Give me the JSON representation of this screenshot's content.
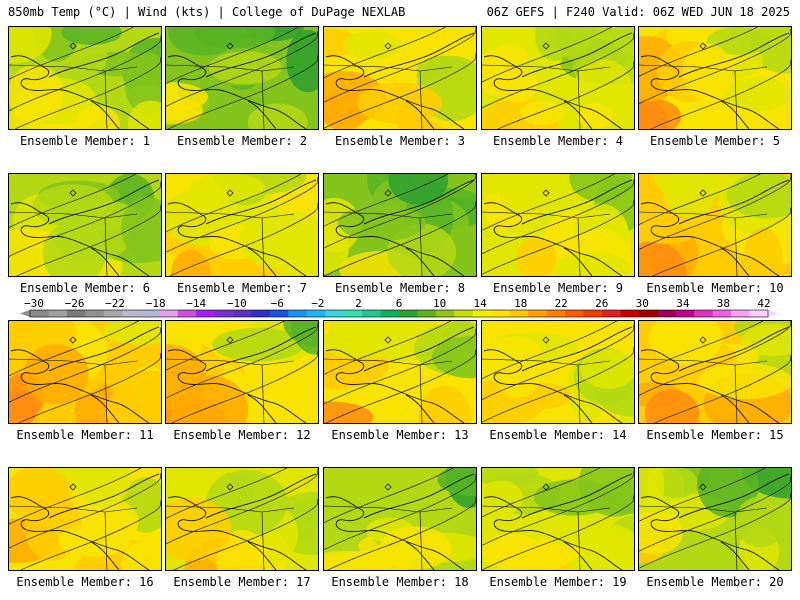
{
  "header": {
    "left": "850mb Temp (°C) | Wind (kts) | College of DuPage NEXLAB",
    "right": "06Z GEFS | F240 Valid: 06Z WED JUN 18 2025"
  },
  "colorbar": {
    "labels": [
      "−30",
      "−26",
      "−22",
      "−18",
      "−14",
      "−10",
      "−6",
      "−2",
      "2",
      "6",
      "10",
      "14",
      "18",
      "22",
      "26",
      "30",
      "34",
      "38",
      "42"
    ],
    "colors": [
      "#8c8c8c",
      "#a0a0a0",
      "#7b7b7b",
      "#8f8f8f",
      "#a8a8a8",
      "#b9b9c9",
      "#b6b6d8",
      "#e4a0e4",
      "#d04ce0",
      "#a020f0",
      "#7a30d0",
      "#5a30c0",
      "#3030c8",
      "#1e50e6",
      "#2090f0",
      "#20b4f0",
      "#40d0e0",
      "#30e0b0",
      "#20c890",
      "#10b060",
      "#30a030",
      "#60b020",
      "#90c818",
      "#c8e000",
      "#f0f000",
      "#ffe000",
      "#ffc800",
      "#ffa000",
      "#ff8000",
      "#ff5a00",
      "#f03c00",
      "#e02020",
      "#c80000",
      "#a00000",
      "#a00050",
      "#c00090",
      "#e030c0",
      "#f060e0",
      "#f8a0f0",
      "#ffd0ff"
    ]
  },
  "members": [
    {
      "label": "Ensemble Member: 1",
      "base": 0.42
    },
    {
      "label": "Ensemble Member: 2",
      "base": 0.3
    },
    {
      "label": "Ensemble Member: 3",
      "base": 0.58
    },
    {
      "label": "Ensemble Member: 4",
      "base": 0.52
    },
    {
      "label": "Ensemble Member: 5",
      "base": 0.66
    },
    {
      "label": "Ensemble Member: 6",
      "base": 0.4
    },
    {
      "label": "Ensemble Member: 7",
      "base": 0.58
    },
    {
      "label": "Ensemble Member: 8",
      "base": 0.28
    },
    {
      "label": "Ensemble Member: 9",
      "base": 0.55
    },
    {
      "label": "Ensemble Member: 10",
      "base": 0.68
    },
    {
      "label": "Ensemble Member: 11",
      "base": 0.72
    },
    {
      "label": "Ensemble Member: 12",
      "base": 0.62
    },
    {
      "label": "Ensemble Member: 13",
      "base": 0.58
    },
    {
      "label": "Ensemble Member: 14",
      "base": 0.56
    },
    {
      "label": "Ensemble Member: 15",
      "base": 0.68
    },
    {
      "label": "Ensemble Member: 16",
      "base": 0.64
    },
    {
      "label": "Ensemble Member: 17",
      "base": 0.55
    },
    {
      "label": "Ensemble Member: 18",
      "base": 0.42
    },
    {
      "label": "Ensemble Member: 19",
      "base": 0.48
    },
    {
      "label": "Ensemble Member: 20",
      "base": 0.4
    }
  ]
}
